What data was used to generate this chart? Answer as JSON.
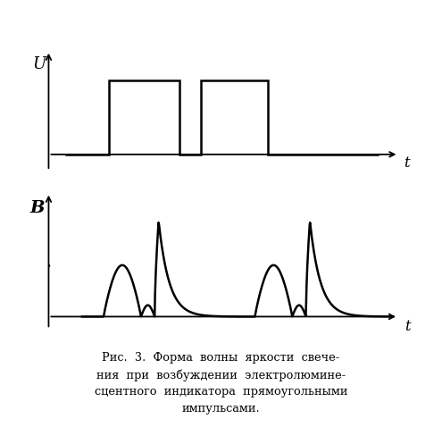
{
  "fig_width": 4.95,
  "fig_height": 4.78,
  "dpi": 100,
  "background_color": "#ffffff",
  "top_ylabel": "U",
  "bottom_ylabel": "B",
  "xlabel": "t",
  "caption": "Рис.  3.  Форма  волны  яркости  свече-\nния  при  возбуждении  электролюмине-\nсцентного  индикатора  прямоугольными\nимпульсами.",
  "line_color": "#000000",
  "line_width": 1.8
}
